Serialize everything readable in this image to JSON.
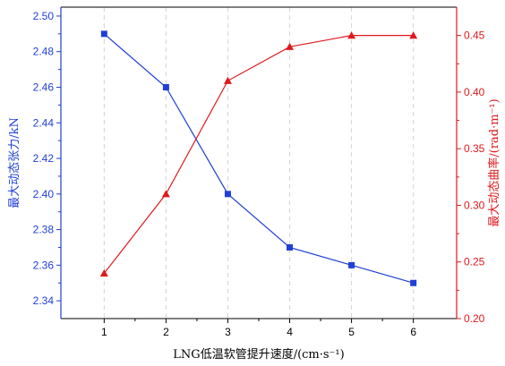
{
  "chart_data": {
    "type": "line",
    "xlabel": "LNG低温软管提升速度/(cm·s⁻¹)",
    "x": [
      1,
      2,
      3,
      4,
      5,
      6
    ],
    "xlim": [
      0.3,
      6.7
    ],
    "xticks": [
      "1",
      "2",
      "3",
      "4",
      "5",
      "6"
    ],
    "grid": "vertical dashed",
    "legend": "none",
    "y_left": {
      "label": "最大动态张力/kN",
      "color": "#1f3fd6",
      "ylim": [
        2.33,
        2.505
      ],
      "ticks": [
        "2.34",
        "2.36",
        "2.38",
        "2.40",
        "2.42",
        "2.44",
        "2.46",
        "2.48",
        "2.50"
      ]
    },
    "y_right": {
      "label": "最大动态曲率/(rad·m⁻¹)",
      "color": "#e0191d",
      "ylim": [
        0.2,
        0.475
      ],
      "ticks": [
        "0.20",
        "0.25",
        "0.30",
        "0.35",
        "0.40",
        "0.45"
      ]
    },
    "series": [
      {
        "axis": "left",
        "marker": "square",
        "values": [
          2.49,
          2.46,
          2.4,
          2.37,
          2.36,
          2.35
        ]
      },
      {
        "axis": "right",
        "marker": "triangle",
        "values": [
          0.24,
          0.31,
          0.41,
          0.44,
          0.45,
          0.45
        ]
      }
    ]
  }
}
